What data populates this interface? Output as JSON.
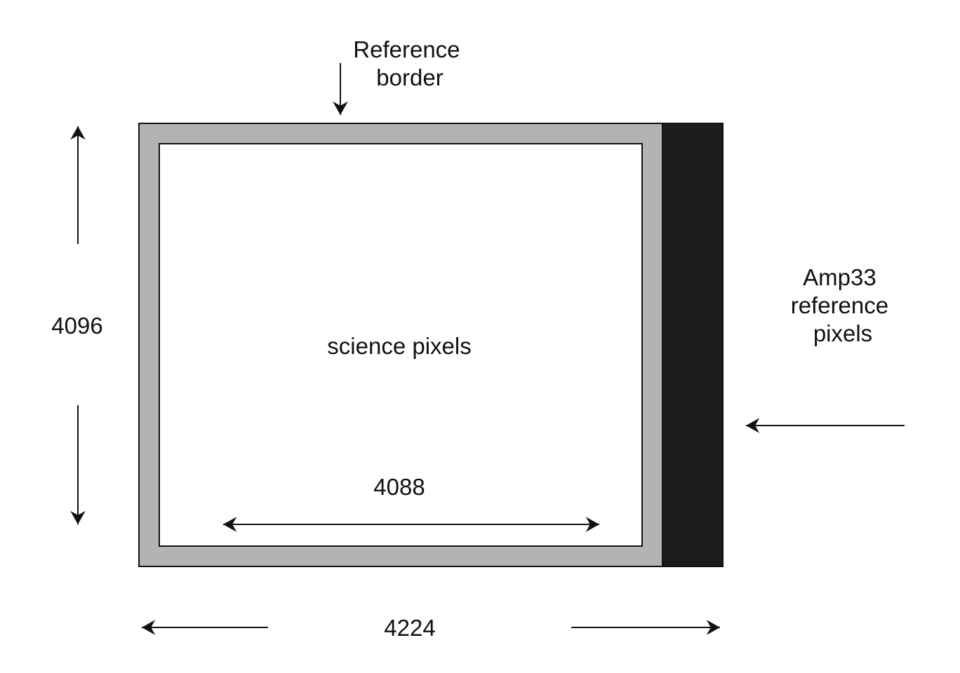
{
  "labels": {
    "reference_border": [
      "Reference",
      "border"
    ],
    "amp33": [
      "Amp33",
      "reference",
      "pixels"
    ],
    "science": "science pixels",
    "height": "4096",
    "inner_width": "4088",
    "total_width": "4224"
  },
  "colors": {
    "border_gray": "#b3b3b3",
    "amp33_black": "#1c1c1c",
    "science_white": "#ffffff",
    "outline": "#111111"
  }
}
